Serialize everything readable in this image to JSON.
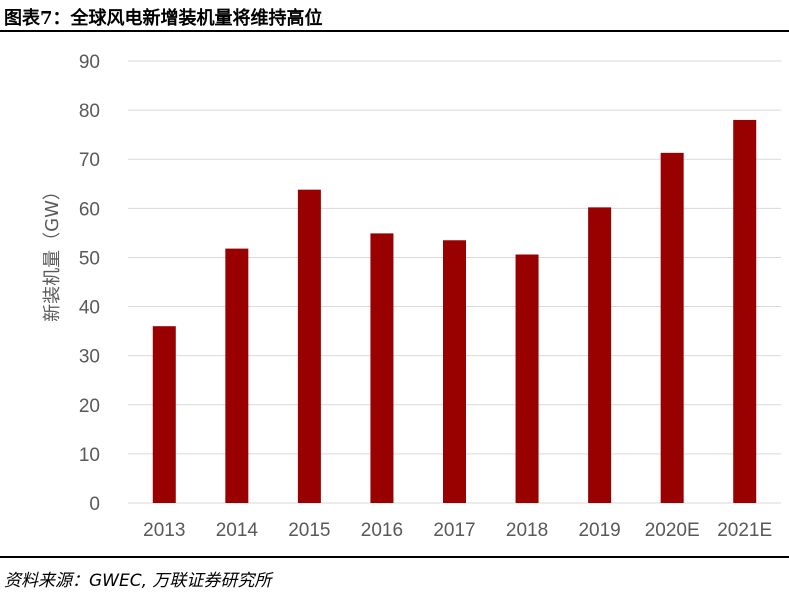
{
  "header": {
    "title": "图表7：全球风电新增装机量将维持高位"
  },
  "footer": {
    "source": "资料来源：GWEC, 万联证券研究所"
  },
  "colors": {
    "bar": "#990000",
    "grid": "#d9d9d9",
    "axis_text": "#595959",
    "rule": "#000000"
  },
  "chart_data": {
    "type": "bar",
    "title": "",
    "xlabel": "",
    "ylabel": "新装机量（GW）",
    "categories": [
      "2013",
      "2014",
      "2015",
      "2016",
      "2017",
      "2018",
      "2019",
      "2020E",
      "2021E"
    ],
    "values": [
      36,
      51.8,
      63.8,
      54.9,
      53.5,
      50.6,
      60.2,
      71.3,
      78
    ],
    "ylim": [
      0,
      90
    ],
    "yticks": [
      "0",
      "10",
      "20",
      "30",
      "40",
      "50",
      "60",
      "70",
      "80",
      "90"
    ],
    "grid": true,
    "legend": "none"
  }
}
